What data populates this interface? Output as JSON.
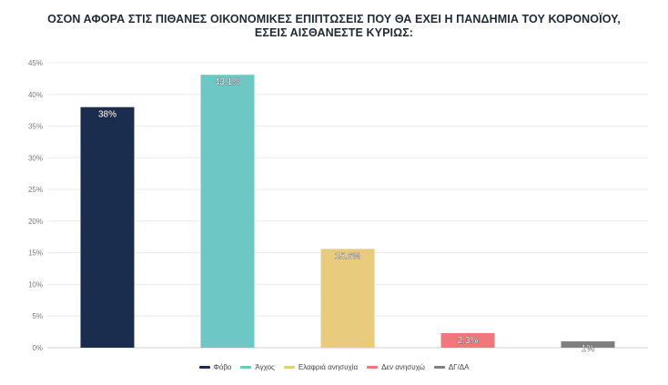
{
  "chart_data": {
    "type": "bar",
    "title_lines": [
      "ΟΣΟΝ ΑΦΟΡΑ ΣΤΙΣ ΠΙΘΑΝΕΣ ΟΙΚΟΝΟΜΙΚΕΣ ΕΠΙΠΤΩΣΕΙΣ ΠΟΥ ΘΑ ΕΧΕΙ Η ΠΑΝΔΗΜΙΑ ΤΟΥ ΚΟΡΟΝΟΪΟΥ,",
      "ΕΣΕΙΣ ΑΙΣΘΑΝΕΣΤΕ ΚΥΡΙΩΣ:"
    ],
    "categories": [
      "Φόβο",
      "Άγχος",
      "Ελαφριά ανησυχία",
      "Δεν ανησυχώ",
      "ΔΓ/ΔΑ"
    ],
    "values": [
      38,
      43.1,
      15.6,
      2.3,
      1
    ],
    "data_labels": [
      "38%",
      "43.1%",
      "15.6%",
      "2.3%",
      "1%"
    ],
    "colors": [
      "#1b2d4f",
      "#6dc7c4",
      "#e8cb7d",
      "#f2777a",
      "#7f7f7f"
    ],
    "ylim": [
      0,
      45
    ],
    "yticks": [
      0,
      5,
      10,
      15,
      20,
      25,
      30,
      35,
      40,
      45
    ],
    "ytick_labels": [
      "0%",
      "5%",
      "10%",
      "15%",
      "20%",
      "25%",
      "30%",
      "35%",
      "40%",
      "45%"
    ],
    "grid": true,
    "legend_position": "bottom",
    "xlabel": "",
    "ylabel": ""
  }
}
